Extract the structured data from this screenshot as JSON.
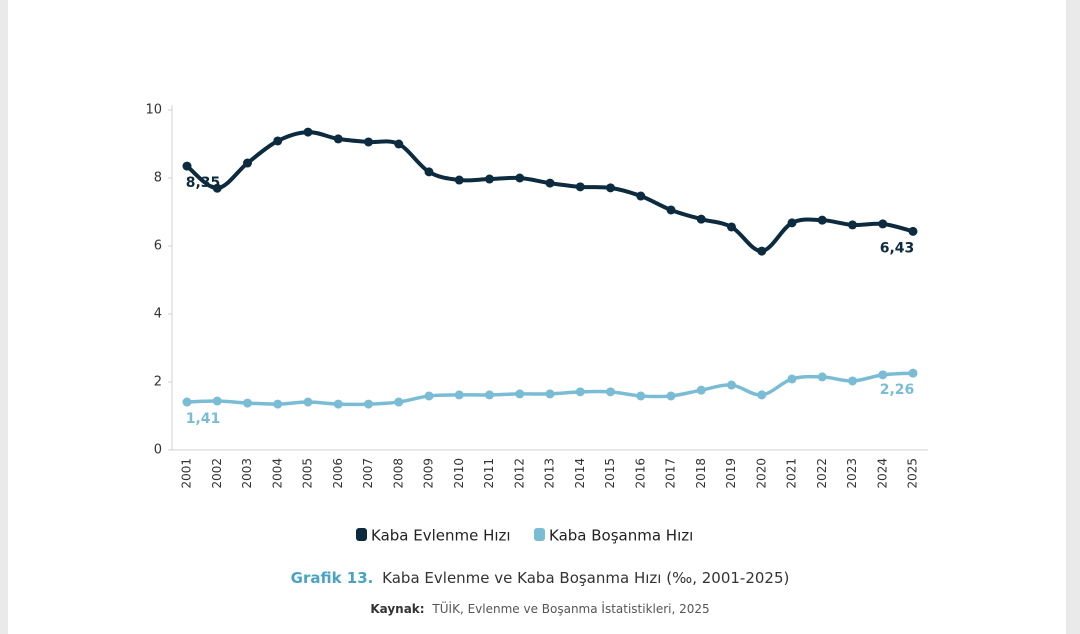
{
  "chart_data": {
    "type": "line",
    "categories": [
      "2001",
      "2002",
      "2003",
      "2004",
      "2005",
      "2006",
      "2007",
      "2008",
      "2009",
      "2010",
      "2011",
      "2012",
      "2013",
      "2014",
      "2015",
      "2016",
      "2017",
      "2018",
      "2019",
      "2020",
      "2021",
      "2022",
      "2023",
      "2024",
      "2025"
    ],
    "series": [
      {
        "name": "Kaba Evlenme Hızı",
        "color": "#0d2b3e",
        "values": [
          8.35,
          7.7,
          8.44,
          9.09,
          9.35,
          9.15,
          9.06,
          9.0,
          8.18,
          7.94,
          7.97,
          8.0,
          7.85,
          7.74,
          7.71,
          7.47,
          7.06,
          6.79,
          6.56,
          5.85,
          6.68,
          6.76,
          6.62,
          6.65,
          6.43
        ],
        "value_labels": [
          "8,35",
          null,
          null,
          null,
          null,
          null,
          null,
          null,
          null,
          null,
          null,
          null,
          null,
          null,
          null,
          null,
          null,
          null,
          null,
          null,
          null,
          null,
          null,
          null,
          "6,43"
        ]
      },
      {
        "name": "Kaba Boşanma Hızı",
        "color": "#7bbcd5",
        "values": [
          1.41,
          1.44,
          1.38,
          1.35,
          1.41,
          1.35,
          1.35,
          1.41,
          1.59,
          1.62,
          1.62,
          1.65,
          1.65,
          1.71,
          1.71,
          1.59,
          1.59,
          1.76,
          1.91,
          1.62,
          2.09,
          2.15,
          2.03,
          2.21,
          2.26
        ],
        "value_labels": [
          "1,41",
          null,
          null,
          null,
          null,
          null,
          null,
          null,
          null,
          null,
          null,
          null,
          null,
          null,
          null,
          null,
          null,
          null,
          null,
          null,
          null,
          null,
          null,
          null,
          "2,26"
        ]
      }
    ],
    "ylim": [
      0,
      10
    ],
    "yticks": [
      0,
      2,
      4,
      6,
      8,
      10
    ],
    "grid": false,
    "caption_label": "Grafik 13.",
    "caption": "Kaba Evlenme ve Kaba Boşanma Hızı (‰, 2001-2025)",
    "source_label": "Kaynak:",
    "source": "TÜİK, Evlenme ve Boşanma İstatistikleri, 2025"
  }
}
